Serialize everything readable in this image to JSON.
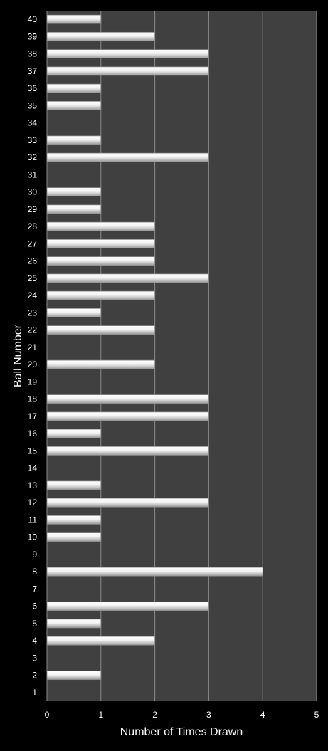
{
  "chart_data": {
    "type": "bar",
    "orientation": "horizontal",
    "categories": [
      "1",
      "2",
      "3",
      "4",
      "5",
      "6",
      "7",
      "8",
      "9",
      "10",
      "11",
      "12",
      "13",
      "14",
      "15",
      "16",
      "17",
      "18",
      "19",
      "20",
      "21",
      "22",
      "23",
      "24",
      "25",
      "26",
      "27",
      "28",
      "29",
      "30",
      "31",
      "32",
      "33",
      "34",
      "35",
      "36",
      "37",
      "38",
      "39",
      "40"
    ],
    "values": [
      0,
      1,
      0,
      2,
      1,
      3,
      0,
      4,
      0,
      1,
      1,
      3,
      1,
      0,
      3,
      1,
      3,
      3,
      0,
      2,
      0,
      2,
      1,
      2,
      3,
      2,
      2,
      2,
      1,
      1,
      0,
      3,
      1,
      0,
      1,
      1,
      3,
      3,
      2,
      1
    ],
    "xlabel": "Number of Times Drawn",
    "ylabel": "Ball Number",
    "xlim": [
      0,
      5
    ],
    "xticks": [
      "0",
      "1",
      "2",
      "3",
      "4",
      "5"
    ],
    "grid": "vertical",
    "legend": "none"
  },
  "colors": {
    "background": "#000000",
    "plot_area": "#404040",
    "bar_fill": "#f2f2f2",
    "bar_shadow": "#8c8c8c",
    "grid": "#8a8a8a",
    "text": "#ffffff"
  }
}
